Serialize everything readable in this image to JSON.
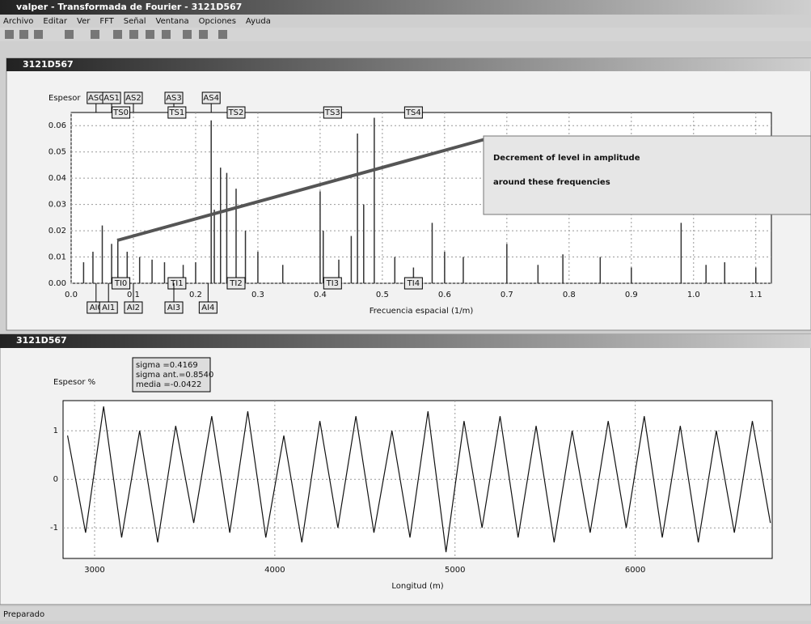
{
  "window": {
    "title": "valper - Transformada de Fourier - 3121D567",
    "menu": [
      "Archivo",
      "Editar",
      "Ver",
      "FFT",
      "Señal",
      "Ventana",
      "Opciones",
      "Ayuda"
    ],
    "panes": [
      "3121D567",
      "3121D567"
    ],
    "status": "Preparado"
  },
  "chart_data": [
    {
      "type": "stem",
      "y_label": "Espesor",
      "x_label": "Frecuencia espacial (1/m)",
      "annotation": "Decrement of level in amplitude around these frequencies",
      "color": "#333333",
      "x": [
        0.02,
        0.035,
        0.05,
        0.065,
        0.075,
        0.09,
        0.11,
        0.13,
        0.15,
        0.18,
        0.2,
        0.225,
        0.23,
        0.24,
        0.25,
        0.265,
        0.28,
        0.3,
        0.34,
        0.4,
        0.405,
        0.43,
        0.45,
        0.46,
        0.47,
        0.487,
        0.52,
        0.55,
        0.58,
        0.6,
        0.63,
        0.7,
        0.75,
        0.79,
        0.85,
        0.9,
        0.98,
        1.02,
        1.05,
        1.1
      ],
      "values": [
        0.008,
        0.012,
        0.022,
        0.015,
        0.017,
        0.012,
        0.01,
        0.009,
        0.008,
        0.007,
        0.008,
        0.062,
        0.028,
        0.044,
        0.042,
        0.036,
        0.02,
        0.012,
        0.007,
        0.035,
        0.02,
        0.009,
        0.018,
        0.057,
        0.03,
        0.063,
        0.01,
        0.006,
        0.023,
        0.012,
        0.01,
        0.015,
        0.007,
        0.011,
        0.01,
        0.006,
        0.023,
        0.007,
        0.008,
        0.006
      ],
      "xlim": [
        0,
        1.125
      ],
      "ylim": [
        0,
        0.065
      ],
      "xticks": [
        {
          "value": 0,
          "label": "0.0"
        },
        0.1,
        0.2,
        0.3,
        0.4,
        0.5,
        0.6,
        0.7,
        0.8,
        0.9,
        {
          "value": 1,
          "label": "1.0"
        },
        1.1
      ],
      "yticks": [
        {
          "value": 0,
          "label": "0.00"
        },
        0.01,
        0.02,
        0.03,
        0.04,
        0.05,
        0.06
      ],
      "grid": true,
      "markers": [
        {
          "label": "AS0",
          "x": 0.04
        },
        {
          "label": "AS1",
          "x": 0.065
        },
        {
          "label": "AS2",
          "x": 0.1
        },
        {
          "label": "AS3",
          "x": 0.165
        },
        {
          "label": "AS4",
          "x": 0.225
        },
        {
          "label": "TS0",
          "x": 0.08
        },
        {
          "label": "TS1",
          "x": 0.17
        },
        {
          "label": "TS2",
          "x": 0.265
        },
        {
          "label": "TS3",
          "x": 0.42
        },
        {
          "label": "TS4",
          "x": 0.55
        },
        {
          "label": "TI0",
          "x": 0.08
        },
        {
          "label": "TI1",
          "x": 0.17
        },
        {
          "label": "TI2",
          "x": 0.265
        },
        {
          "label": "TI3",
          "x": 0.42
        },
        {
          "label": "TI4",
          "x": 0.55
        },
        {
          "label": "AI0",
          "x": 0.04
        },
        {
          "label": "AI1",
          "x": 0.06
        },
        {
          "label": "AI2",
          "x": 0.1
        },
        {
          "label": "AI3",
          "x": 0.165
        },
        {
          "label": "AI4",
          "x": 0.22
        }
      ]
    },
    {
      "type": "line",
      "y_label": "Espesor %",
      "x_label": "Longitud (m)",
      "stats": [
        "sigma =0.4169",
        "sigma ant.=0.8540",
        "media =-0.0422"
      ],
      "color": "#111111",
      "x": [
        2850,
        2950,
        3050,
        3150,
        3250,
        3350,
        3450,
        3550,
        3650,
        3750,
        3850,
        3950,
        4050,
        4150,
        4250,
        4350,
        4450,
        4550,
        4650,
        4750,
        4850,
        4950,
        5050,
        5150,
        5250,
        5350,
        5450,
        5550,
        5650,
        5750,
        5850,
        5950,
        6050,
        6150,
        6250,
        6350,
        6450,
        6550,
        6650,
        6750
      ],
      "values": [
        0.9,
        -1.1,
        1.5,
        -1.2,
        1.0,
        -1.3,
        1.1,
        -0.9,
        1.3,
        -1.1,
        1.4,
        -1.2,
        0.9,
        -1.3,
        1.2,
        -1.0,
        1.3,
        -1.1,
        1.0,
        -1.2,
        1.4,
        -1.5,
        1.2,
        -1.0,
        1.3,
        -1.2,
        1.1,
        -1.3,
        1.0,
        -1.1,
        1.2,
        -1.0,
        1.3,
        -1.2,
        1.1,
        -1.3,
        1.0,
        -1.1,
        1.2,
        -0.9
      ],
      "xlim": [
        2825,
        6760
      ],
      "ylim": [
        -1.63,
        1.62
      ],
      "xticks": [
        3000,
        4000,
        5000,
        6000
      ],
      "yticks": [
        -1,
        0,
        1
      ],
      "grid": true
    }
  ]
}
